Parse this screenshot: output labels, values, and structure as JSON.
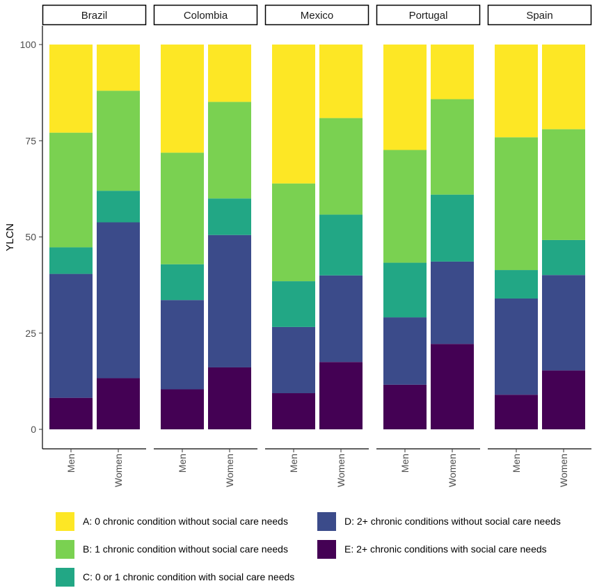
{
  "chart_data": {
    "type": "bar",
    "stacked": true,
    "ylabel": "YLCN",
    "ylim": [
      0,
      100
    ],
    "yticks": [
      0,
      25,
      50,
      75,
      100
    ],
    "facets": [
      "Brazil",
      "Colombia",
      "Mexico",
      "Portugal",
      "Spain"
    ],
    "categories": [
      "Men",
      "Women"
    ],
    "series": [
      {
        "key": "E",
        "name": "E: 2+ chronic conditions with social care needs",
        "color": "#440154",
        "values": {
          "Brazil": [
            8.2,
            13.3
          ],
          "Colombia": [
            10.4,
            16.1
          ],
          "Mexico": [
            9.4,
            17.5
          ],
          "Portugal": [
            11.6,
            22.2
          ],
          "Spain": [
            9.0,
            15.3
          ]
        }
      },
      {
        "key": "D",
        "name": "D: 2+ chronic conditions without social care needs",
        "color": "#3b4b8a",
        "values": {
          "Brazil": [
            32.2,
            40.5
          ],
          "Colombia": [
            23.2,
            34.4
          ],
          "Mexico": [
            17.2,
            22.5
          ],
          "Portugal": [
            17.5,
            21.4
          ],
          "Spain": [
            25.0,
            24.8
          ]
        }
      },
      {
        "key": "C",
        "name": "C: 0 or 1 chronic condition with social care needs",
        "color": "#22a785",
        "values": {
          "Brazil": [
            6.9,
            8.2
          ],
          "Colombia": [
            9.3,
            9.5
          ],
          "Mexico": [
            11.9,
            15.8
          ],
          "Portugal": [
            14.2,
            17.4
          ],
          "Spain": [
            7.4,
            9.1
          ]
        }
      },
      {
        "key": "B",
        "name": "B: 1 chronic condition without social care needs",
        "color": "#7ad151",
        "values": {
          "Brazil": [
            29.8,
            26.0
          ],
          "Colombia": [
            29.0,
            25.1
          ],
          "Mexico": [
            25.4,
            25.1
          ],
          "Portugal": [
            29.3,
            24.8
          ],
          "Spain": [
            34.5,
            28.8
          ]
        }
      },
      {
        "key": "A",
        "name": "A: 0 chronic condition without social care needs",
        "color": "#fde725",
        "values": {
          "Brazil": [
            22.9,
            12.0
          ],
          "Colombia": [
            28.1,
            14.9
          ],
          "Mexico": [
            36.1,
            19.1
          ],
          "Portugal": [
            27.4,
            14.2
          ],
          "Spain": [
            24.1,
            22.0
          ]
        }
      }
    ],
    "legend": {
      "position": "bottom",
      "items": [
        {
          "label": "A: 0 chronic condition without social care needs",
          "color": "#fde725"
        },
        {
          "label": "B: 1 chronic condition without social care needs",
          "color": "#7ad151"
        },
        {
          "label": "C: 0 or 1 chronic condition with social care needs",
          "color": "#22a785"
        },
        {
          "label": "D: 2+ chronic conditions without social care needs",
          "color": "#3b4b8a"
        },
        {
          "label": "E: 2+ chronic conditions with social care needs",
          "color": "#440154"
        }
      ]
    }
  }
}
